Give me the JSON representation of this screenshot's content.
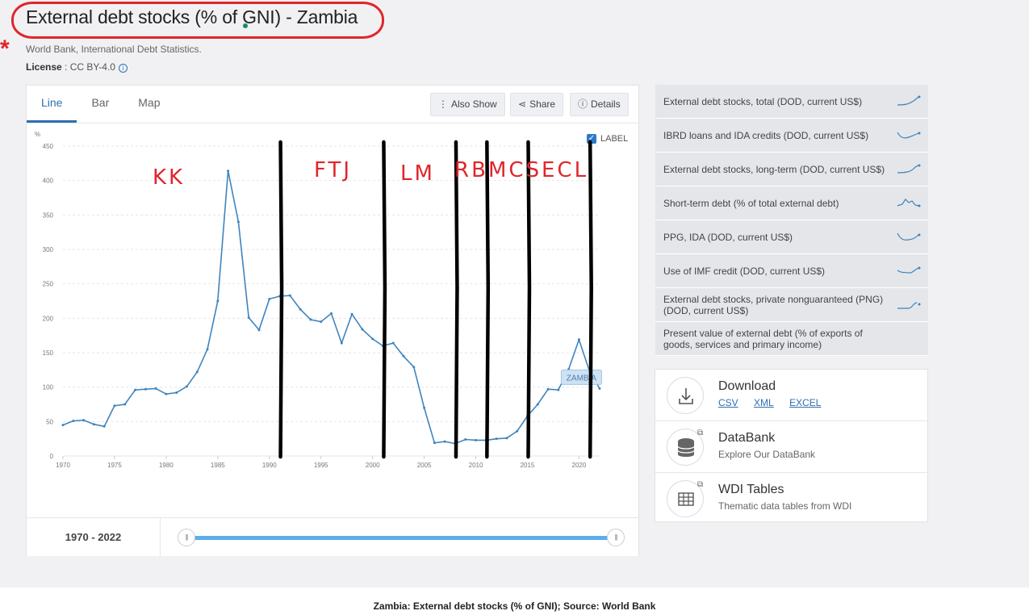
{
  "page": {
    "title": "External debt stocks (% of GNI) - Zambia",
    "source": "World Bank, International Debt Statistics.",
    "license_label": "License",
    "license_value": ": CC BY-4.0",
    "caption": "Zambia: External debt stocks (% of GNI); Source: World Bank"
  },
  "tabs": [
    {
      "label": "Line",
      "active": true
    },
    {
      "label": "Bar",
      "active": false
    },
    {
      "label": "Map",
      "active": false
    }
  ],
  "toolbar": {
    "also_show": "Also Show",
    "share": "Share",
    "details": "Details"
  },
  "label_toggle": "LABEL",
  "range": {
    "label": "1970 - 2022"
  },
  "related": [
    "External debt stocks, total (DOD, current US$)",
    "IBRD loans and IDA credits (DOD, current US$)",
    "External debt stocks, long-term (DOD, current US$)",
    "Short-term debt (% of total external debt)",
    "PPG, IDA (DOD, current US$)",
    "Use of IMF credit (DOD, current US$)",
    "External debt stocks, private nonguaranteed (PNG) (DOD, current US$)",
    "Present value of external debt (% of exports of goods, services and primary income)"
  ],
  "links": {
    "download": {
      "title": "Download",
      "csv": "CSV",
      "xml": "XML",
      "excel": "EXCEL"
    },
    "databank": {
      "title": "DataBank",
      "sub": "Explore Our DataBank"
    },
    "wdi": {
      "title": "WDI Tables",
      "sub": "Thematic data tables from WDI"
    }
  },
  "colors": {
    "line": "#3f84bd",
    "accent": "#2e6fb0",
    "annotation_red": "#e0262b",
    "annotation_black": "#000000"
  },
  "chart_data": {
    "type": "line",
    "ylabel": "%",
    "ylim": [
      0,
      450
    ],
    "yticks": [
      0,
      50,
      100,
      150,
      200,
      250,
      300,
      350,
      400,
      450
    ],
    "xlim": [
      1970,
      2022
    ],
    "xticks": [
      1970,
      1975,
      1980,
      1985,
      1990,
      1995,
      2000,
      2005,
      2010,
      2015,
      2020
    ],
    "grid": true,
    "series": [
      {
        "name": "ZAMBIA",
        "x": [
          1970,
          1971,
          1972,
          1973,
          1974,
          1975,
          1976,
          1977,
          1978,
          1979,
          1980,
          1981,
          1982,
          1983,
          1984,
          1985,
          1986,
          1987,
          1988,
          1989,
          1990,
          1991,
          1992,
          1993,
          1994,
          1995,
          1996,
          1997,
          1998,
          1999,
          2000,
          2001,
          2002,
          2003,
          2004,
          2005,
          2006,
          2007,
          2008,
          2009,
          2010,
          2011,
          2012,
          2013,
          2014,
          2015,
          2016,
          2017,
          2018,
          2019,
          2020,
          2021,
          2022
        ],
        "y": [
          45,
          51,
          52,
          46,
          43,
          73,
          75,
          96,
          97,
          98,
          90,
          92,
          101,
          122,
          155,
          225,
          414,
          340,
          201,
          183,
          228,
          232,
          233,
          213,
          198,
          195,
          207,
          164,
          206,
          184,
          170,
          160,
          164,
          145,
          129,
          70,
          19,
          21,
          18,
          24,
          23,
          23,
          25,
          26,
          36,
          58,
          75,
          97,
          96,
          126,
          169,
          124,
          98
        ]
      }
    ],
    "end_label": "ZAMBIA",
    "annotations": {
      "labels": [
        "KK",
        "FTJ",
        "LM",
        "RB",
        "MCS",
        "ECL"
      ],
      "dividers": [
        1991,
        2001,
        2008,
        2011,
        2015,
        2021
      ]
    }
  }
}
